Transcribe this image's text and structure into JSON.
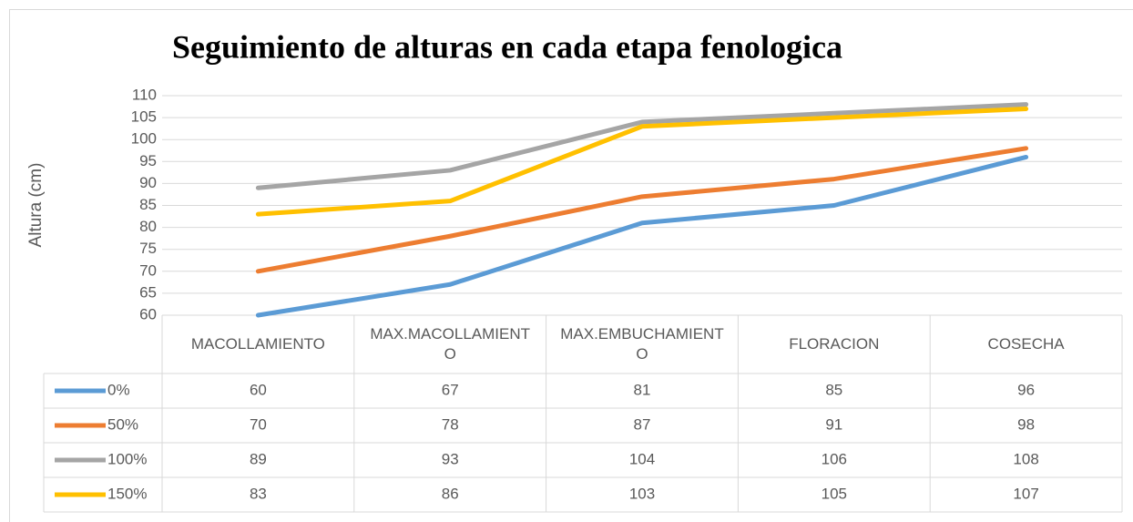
{
  "chart_data": {
    "type": "line",
    "title": "Seguimiento de alturas en cada etapa fenologica",
    "y_label": "Altura (cm)",
    "categories": [
      "MACOLLAMIENTO",
      "MAX.MACOLLAMIENTO",
      "MAX.EMBUCHAMIENTO",
      "FLORACION",
      "COSECHA"
    ],
    "series": [
      {
        "name": "0%",
        "color": "#5b9bd5",
        "values": [
          60,
          67,
          81,
          85,
          96
        ]
      },
      {
        "name": "50%",
        "color": "#ed7d31",
        "values": [
          70,
          78,
          87,
          91,
          98
        ]
      },
      {
        "name": "100%",
        "color": "#a5a5a5",
        "values": [
          89,
          93,
          104,
          106,
          108
        ]
      },
      {
        "name": "150%",
        "color": "#ffc000",
        "values": [
          83,
          86,
          103,
          105,
          107
        ]
      }
    ],
    "ylim": [
      60,
      110
    ],
    "yticks": [
      60,
      65,
      70,
      75,
      80,
      85,
      90,
      95,
      100,
      105,
      110
    ],
    "grid": true
  }
}
